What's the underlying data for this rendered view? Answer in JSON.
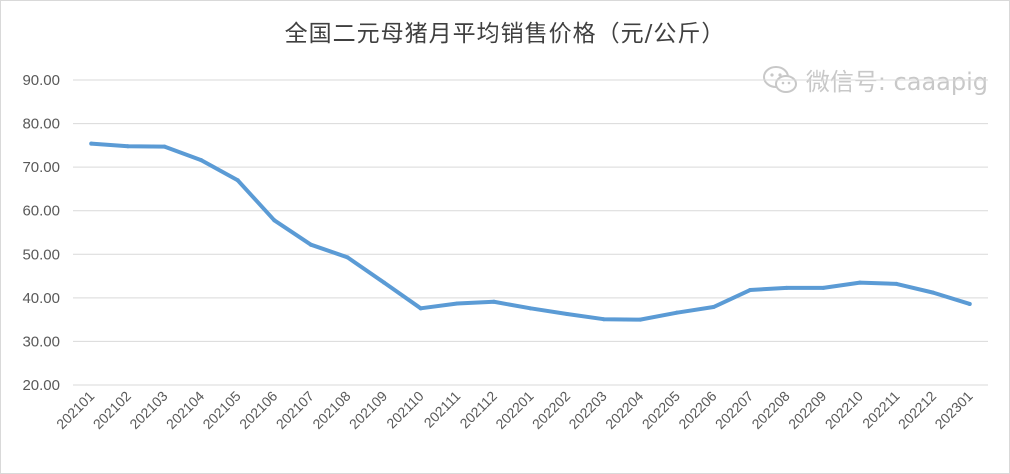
{
  "chart_data": {
    "type": "line",
    "title": "全国二元母猪月平均销售价格（元/公斤）",
    "xlabel": "",
    "ylabel": "",
    "ylim": [
      20,
      90
    ],
    "yticks": [
      "20.00",
      "30.00",
      "40.00",
      "50.00",
      "60.00",
      "70.00",
      "80.00",
      "90.00"
    ],
    "grid": true,
    "line_color": "#5b9bd5",
    "categories": [
      "202101",
      "202102",
      "202103",
      "202104",
      "202105",
      "202106",
      "202107",
      "202108",
      "202109",
      "202110",
      "202111",
      "202112",
      "202201",
      "202202",
      "202203",
      "202204",
      "202205",
      "202206",
      "202207",
      "202208",
      "202209",
      "202210",
      "202211",
      "202212",
      "202301"
    ],
    "series": [
      {
        "values": [
          75.4,
          74.8,
          74.7,
          71.6,
          67.0,
          57.8,
          52.2,
          49.3,
          43.5,
          37.6,
          38.7,
          39.1,
          37.6,
          36.3,
          35.1,
          35.0,
          36.6,
          37.9,
          41.8,
          42.3,
          42.3,
          43.5,
          43.2,
          41.2,
          38.6
        ]
      }
    ]
  },
  "watermark": {
    "text": "微信号: caaapig",
    "icon": "wechat-icon"
  }
}
